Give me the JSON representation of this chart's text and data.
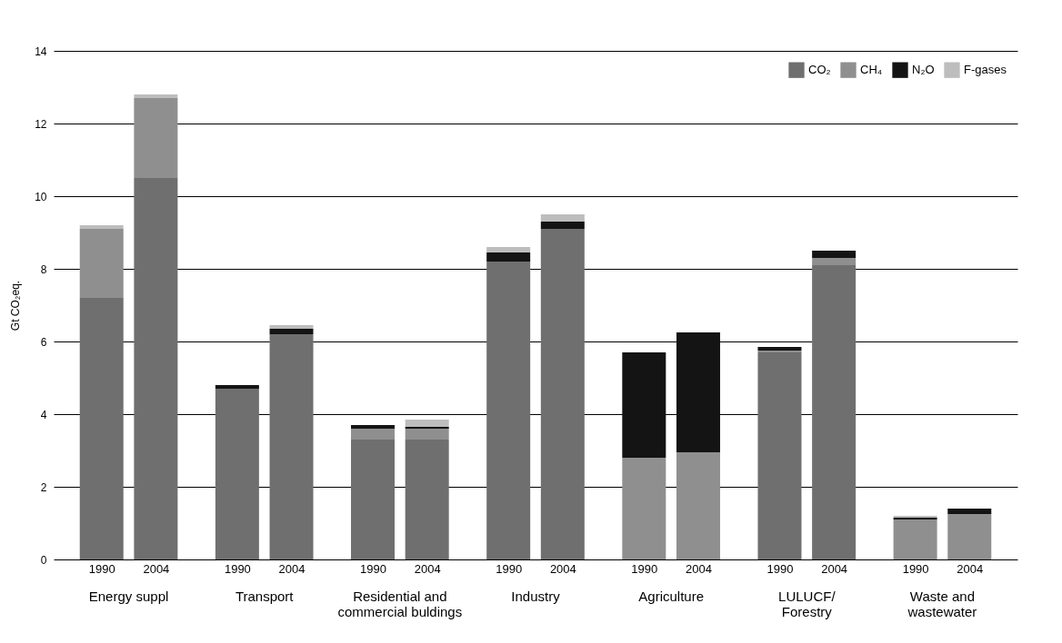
{
  "chart_data": {
    "type": "bar",
    "stacked": true,
    "ylabel": "Gt CO₂eq.",
    "categories": [
      "1990",
      "2004",
      "1990",
      "2004",
      "1990",
      "2004",
      "1990",
      "2004",
      "1990",
      "2004",
      "1990",
      "2004",
      "1990",
      "2004"
    ],
    "series": [
      {
        "name": "CO₂",
        "color": "#6f6f6f",
        "values": [
          7.2,
          10.5,
          4.7,
          6.2,
          3.3,
          3.3,
          8.2,
          9.1,
          0,
          0,
          5.7,
          8.1,
          0,
          0
        ]
      },
      {
        "name": "CH₄",
        "color": "#8f8f8f",
        "values": [
          1.9,
          2.2,
          0,
          0,
          0.3,
          0.3,
          0,
          0,
          2.8,
          2.95,
          0.05,
          0.2,
          1.1,
          1.25
        ]
      },
      {
        "name": "N₂O",
        "color": "#141414",
        "values": [
          0,
          0,
          0.1,
          0.15,
          0.1,
          0.05,
          0.25,
          0.2,
          2.9,
          3.3,
          0.1,
          0.2,
          0.05,
          0.15
        ]
      },
      {
        "name": "F-gases",
        "color": "#bdbdbd",
        "values": [
          0.1,
          0.1,
          0,
          0.1,
          0,
          0.2,
          0.15,
          0.2,
          0,
          0,
          0,
          0,
          0.05,
          0
        ]
      }
    ],
    "annotations": [
      "Energy suppl",
      "Transport",
      "Residential and\ncommercial buldings",
      "Industry",
      "Agriculture",
      "LULUCF/\nForestry",
      "Waste and\nwastewater"
    ],
    "ylim": [
      0,
      14
    ],
    "yticks": [
      0,
      2,
      4,
      6,
      8,
      10,
      12,
      14
    ],
    "grid": "y",
    "legend": "top right"
  }
}
